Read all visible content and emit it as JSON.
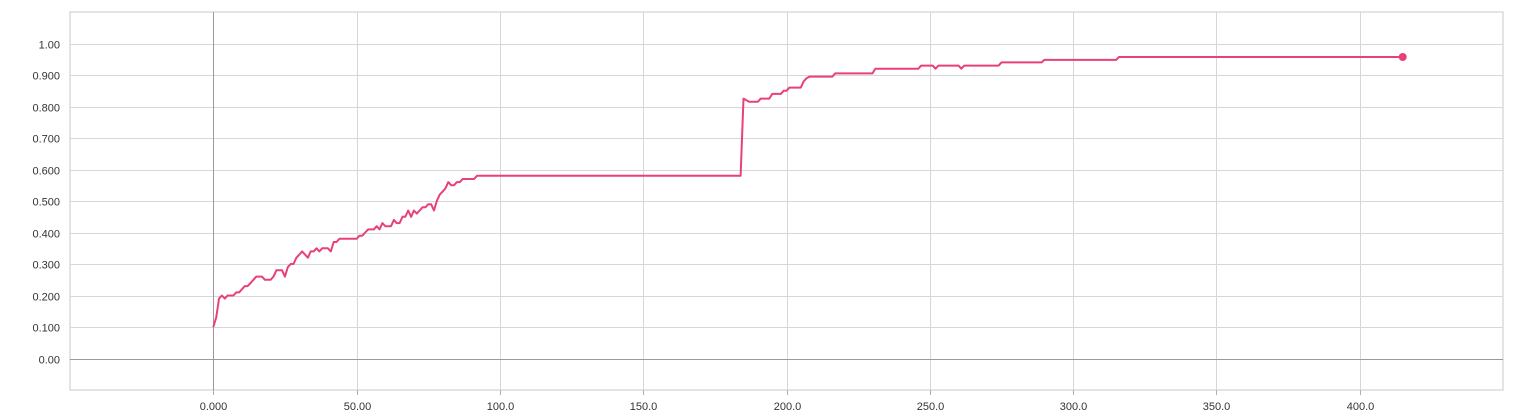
{
  "chart_data": {
    "type": "line",
    "title": "",
    "xlabel": "",
    "ylabel": "",
    "xlim": [
      -50,
      450
    ],
    "ylim": [
      -0.1,
      1.1
    ],
    "grid": true,
    "x_ticks": [
      0,
      50,
      100,
      150,
      200,
      250,
      300,
      350,
      400
    ],
    "x_tick_labels": [
      "0.000",
      "50.00",
      "100.0",
      "150.0",
      "200.0",
      "250.0",
      "300.0",
      "350.0",
      "400.0"
    ],
    "y_ticks": [
      0,
      0.1,
      0.2,
      0.3,
      0.4,
      0.5,
      0.6,
      0.7,
      0.8,
      0.9,
      1.0
    ],
    "y_tick_labels": [
      "0.00",
      "0.100",
      "0.200",
      "0.300",
      "0.400",
      "0.500",
      "0.600",
      "0.700",
      "0.800",
      "0.900",
      "1.00"
    ],
    "series": [
      {
        "color": "#e8407a",
        "points": [
          [
            0,
            0.1
          ],
          [
            1,
            0.13
          ],
          [
            2,
            0.19
          ],
          [
            3,
            0.2
          ],
          [
            4,
            0.19
          ],
          [
            5,
            0.2
          ],
          [
            6,
            0.2
          ],
          [
            7,
            0.2
          ],
          [
            8,
            0.21
          ],
          [
            9,
            0.21
          ],
          [
            10,
            0.22
          ],
          [
            11,
            0.23
          ],
          [
            12,
            0.23
          ],
          [
            13,
            0.24
          ],
          [
            14,
            0.25
          ],
          [
            15,
            0.26
          ],
          [
            16,
            0.26
          ],
          [
            17,
            0.26
          ],
          [
            18,
            0.25
          ],
          [
            19,
            0.25
          ],
          [
            20,
            0.25
          ],
          [
            21,
            0.26
          ],
          [
            22,
            0.28
          ],
          [
            23,
            0.28
          ],
          [
            24,
            0.28
          ],
          [
            25,
            0.26
          ],
          [
            26,
            0.29
          ],
          [
            27,
            0.3
          ],
          [
            28,
            0.3
          ],
          [
            29,
            0.32
          ],
          [
            30,
            0.33
          ],
          [
            31,
            0.34
          ],
          [
            32,
            0.33
          ],
          [
            33,
            0.32
          ],
          [
            34,
            0.34
          ],
          [
            35,
            0.34
          ],
          [
            36,
            0.35
          ],
          [
            37,
            0.34
          ],
          [
            38,
            0.35
          ],
          [
            39,
            0.35
          ],
          [
            40,
            0.35
          ],
          [
            41,
            0.34
          ],
          [
            42,
            0.37
          ],
          [
            43,
            0.37
          ],
          [
            44,
            0.38
          ],
          [
            45,
            0.38
          ],
          [
            50,
            0.38
          ],
          [
            51,
            0.39
          ],
          [
            52,
            0.39
          ],
          [
            53,
            0.4
          ],
          [
            54,
            0.41
          ],
          [
            55,
            0.41
          ],
          [
            56,
            0.41
          ],
          [
            57,
            0.42
          ],
          [
            58,
            0.41
          ],
          [
            59,
            0.43
          ],
          [
            60,
            0.42
          ],
          [
            61,
            0.42
          ],
          [
            62,
            0.42
          ],
          [
            63,
            0.44
          ],
          [
            64,
            0.43
          ],
          [
            65,
            0.43
          ],
          [
            66,
            0.45
          ],
          [
            67,
            0.45
          ],
          [
            68,
            0.47
          ],
          [
            69,
            0.45
          ],
          [
            70,
            0.47
          ],
          [
            71,
            0.46
          ],
          [
            72,
            0.47
          ],
          [
            73,
            0.48
          ],
          [
            74,
            0.48
          ],
          [
            75,
            0.49
          ],
          [
            76,
            0.49
          ],
          [
            77,
            0.47
          ],
          [
            78,
            0.5
          ],
          [
            79,
            0.52
          ],
          [
            80,
            0.53
          ],
          [
            81,
            0.54
          ],
          [
            82,
            0.56
          ],
          [
            83,
            0.55
          ],
          [
            84,
            0.55
          ],
          [
            85,
            0.56
          ],
          [
            86,
            0.56
          ],
          [
            87,
            0.57
          ],
          [
            91,
            0.57
          ],
          [
            92,
            0.58
          ],
          [
            184,
            0.58
          ],
          [
            185,
            0.825
          ],
          [
            186,
            0.82
          ],
          [
            187,
            0.815
          ],
          [
            190,
            0.815
          ],
          [
            191,
            0.825
          ],
          [
            194,
            0.825
          ],
          [
            195,
            0.84
          ],
          [
            198,
            0.84
          ],
          [
            199,
            0.85
          ],
          [
            200,
            0.85
          ],
          [
            201,
            0.86
          ],
          [
            205,
            0.86
          ],
          [
            206,
            0.88
          ],
          [
            207,
            0.89
          ],
          [
            208,
            0.895
          ],
          [
            216,
            0.895
          ],
          [
            217,
            0.905
          ],
          [
            230,
            0.905
          ],
          [
            231,
            0.92
          ],
          [
            246,
            0.92
          ],
          [
            247,
            0.93
          ],
          [
            251,
            0.93
          ],
          [
            252,
            0.92
          ],
          [
            253,
            0.93
          ],
          [
            260,
            0.93
          ],
          [
            261,
            0.92
          ],
          [
            262,
            0.93
          ],
          [
            274,
            0.93
          ],
          [
            275,
            0.94
          ],
          [
            289,
            0.94
          ],
          [
            290,
            0.948
          ],
          [
            315,
            0.948
          ],
          [
            316,
            0.957
          ],
          [
            415,
            0.957
          ]
        ]
      }
    ]
  }
}
